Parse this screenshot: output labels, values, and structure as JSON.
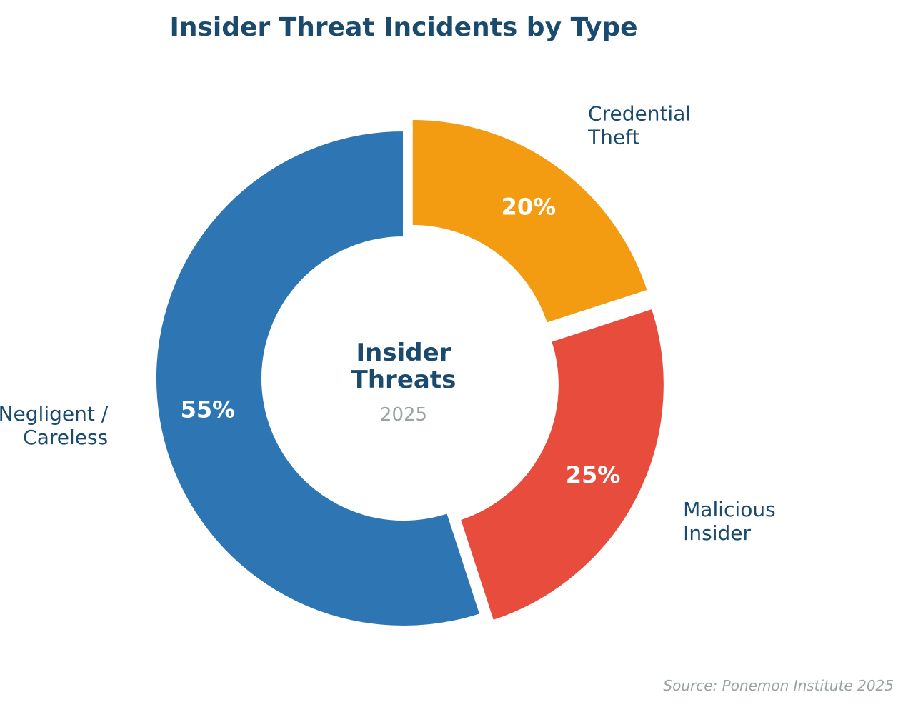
{
  "colors": {
    "title": "#1a4a6e",
    "label": "#1a4a6e",
    "muted": "#9aa3a3",
    "pct": "#ffffff"
  },
  "chart_data": {
    "type": "pie",
    "variant": "donut",
    "title": "Insider Threat Incidents by Type",
    "center_title": [
      "Insider",
      "Threats"
    ],
    "center_subtitle": "2025",
    "source": "Source: Ponemon Institute 2025",
    "start_angle_deg": 0,
    "direction": "clockwise",
    "slices": [
      {
        "label": [
          "Credential",
          "Theft"
        ],
        "value": 20,
        "pct_label": "20%",
        "color": "#f39c12",
        "exploded": true
      },
      {
        "label": [
          "Malicious",
          "Insider"
        ],
        "value": 25,
        "pct_label": "25%",
        "color": "#e74c3c",
        "exploded": true
      },
      {
        "label": [
          "Negligent /",
          "Careless"
        ],
        "value": 55,
        "pct_label": "55%",
        "color": "#2e75b3",
        "exploded": false
      }
    ]
  }
}
